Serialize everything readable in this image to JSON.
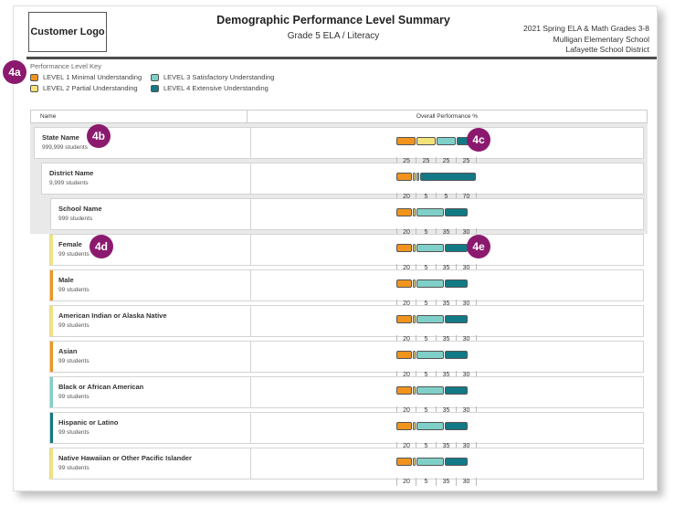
{
  "header": {
    "logo_text": "Customer Logo",
    "title": "Demographic Performance Level Summary",
    "subtitle": "Grade 5 ELA / Literacy",
    "info": [
      "2021 Spring ELA & Math Grades 3-8",
      "Mulligan Elementary School",
      "Lafayette School District"
    ]
  },
  "key": {
    "title": "Performance Level Key",
    "levels": [
      {
        "label": "LEVEL 1 Minimal Understanding",
        "color": "#f0941e"
      },
      {
        "label": "LEVEL 3 Satisfactory Understanding",
        "color": "#7fd0c8"
      },
      {
        "label": "LEVEL 2 Partial Understanding",
        "color": "#f3e27a"
      },
      {
        "label": "LEVEL 4 Extensive Understanding",
        "color": "#127a86"
      }
    ]
  },
  "colors": {
    "l1": "#f0941e",
    "l2": "#f3e27a",
    "l3": "#7fd0c8",
    "l4": "#127a86"
  },
  "table": {
    "col_name": "Name",
    "col_perf": "Overall Performance %",
    "rows": [
      {
        "name": "State Name",
        "count": "999,999 students",
        "values": [
          25,
          25,
          25,
          25
        ],
        "indent": 0,
        "accent": ""
      },
      {
        "name": "District Name",
        "count": "9,999 students",
        "values": [
          20,
          5,
          5,
          70
        ],
        "indent": 1,
        "accent": ""
      },
      {
        "name": "School Name",
        "count": "999 students",
        "values": [
          20,
          5,
          35,
          30
        ],
        "indent": 2,
        "accent": ""
      },
      {
        "name": "Female",
        "count": "99 students",
        "values": [
          20,
          5,
          35,
          30
        ],
        "indent": 3,
        "accent": "#f3e27a"
      },
      {
        "name": "Male",
        "count": "99 students",
        "values": [
          20,
          5,
          35,
          30
        ],
        "indent": 3,
        "accent": "#f0941e"
      },
      {
        "name": "American Indian or Alaska Native",
        "count": "99 students",
        "values": [
          20,
          5,
          35,
          30
        ],
        "indent": 3,
        "accent": "#f3e27a"
      },
      {
        "name": "Asian",
        "count": "99 students",
        "values": [
          20,
          5,
          35,
          30
        ],
        "indent": 3,
        "accent": "#f0941e"
      },
      {
        "name": "Black or African American",
        "count": "99 students",
        "values": [
          20,
          5,
          35,
          30
        ],
        "indent": 3,
        "accent": "#7fd0c8"
      },
      {
        "name": "Hispanic or Latino",
        "count": "99 students",
        "values": [
          20,
          5,
          35,
          30
        ],
        "indent": 3,
        "accent": "#127a86"
      },
      {
        "name": "Native Hawaiian or Other Pacific Islander",
        "count": "99 students",
        "values": [
          20,
          5,
          35,
          30
        ],
        "indent": 3,
        "accent": "#f3e27a"
      }
    ]
  },
  "callouts": [
    "4a",
    "4b",
    "4c",
    "4d",
    "4e"
  ]
}
